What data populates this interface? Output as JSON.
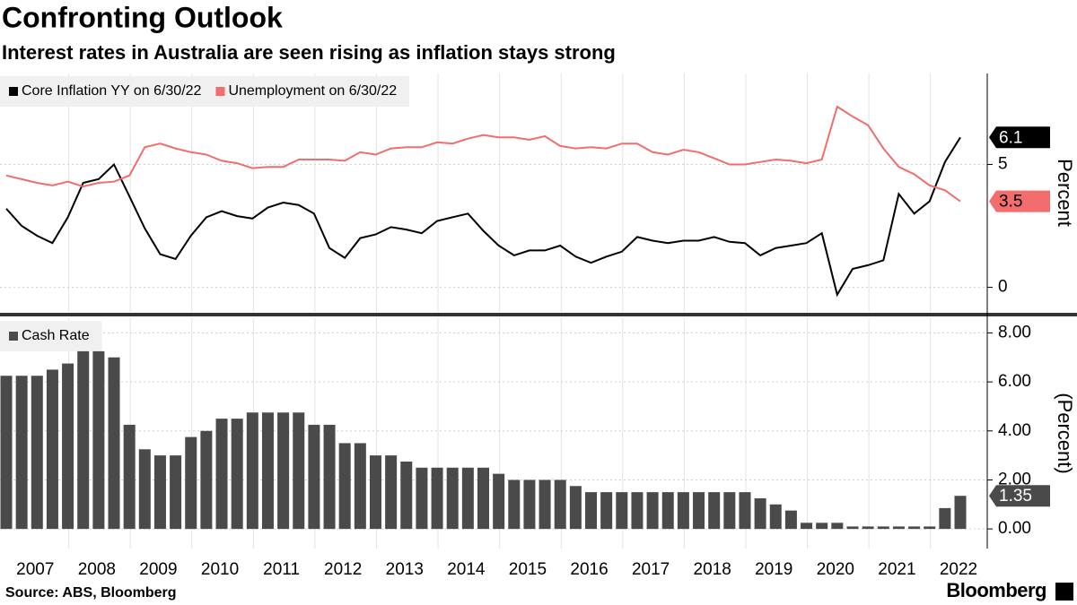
{
  "title": "Confronting Outlook",
  "subtitle": "Interest rates in Australia are seen rising as inflation stays strong",
  "source": "Source: ABS, Bloomberg",
  "brand": "Bloomberg",
  "chart_data": [
    {
      "type": "line",
      "ylabel": "Percent",
      "ylim": [
        -1,
        8.7
      ],
      "yticks": [
        0,
        5
      ],
      "legend": "top-left",
      "series": [
        {
          "name": "Core Inflation YY on 6/30/22",
          "color": "#000000",
          "values": [
            3.2,
            2.5,
            2.1,
            1.8,
            2.85,
            4.25,
            4.4,
            5.0,
            3.7,
            2.4,
            1.35,
            1.15,
            2.1,
            2.85,
            3.1,
            2.9,
            2.8,
            3.25,
            3.45,
            3.35,
            3.0,
            1.6,
            1.2,
            2.0,
            2.15,
            2.45,
            2.35,
            2.2,
            2.7,
            2.85,
            3.0,
            2.3,
            1.7,
            1.3,
            1.5,
            1.5,
            1.7,
            1.25,
            1.0,
            1.25,
            1.45,
            2.05,
            1.9,
            1.8,
            1.9,
            1.9,
            2.05,
            1.85,
            1.8,
            1.3,
            1.6,
            1.7,
            1.8,
            2.2,
            -0.3,
            0.75,
            0.9,
            1.1,
            3.8,
            3.0,
            3.5,
            5.1,
            6.1
          ]
        },
        {
          "name": "Unemployment on 6/30/22",
          "color": "#f26d6d",
          "values": [
            4.55,
            4.4,
            4.25,
            4.15,
            4.3,
            4.1,
            4.25,
            4.3,
            4.55,
            5.7,
            5.85,
            5.65,
            5.5,
            5.4,
            5.15,
            5.05,
            4.85,
            4.9,
            4.9,
            5.2,
            5.2,
            5.2,
            5.15,
            5.5,
            5.4,
            5.65,
            5.7,
            5.7,
            5.9,
            5.85,
            6.05,
            6.2,
            6.1,
            6.1,
            6.0,
            6.15,
            5.75,
            5.65,
            5.7,
            5.65,
            5.85,
            5.85,
            5.5,
            5.4,
            5.6,
            5.5,
            5.25,
            5.0,
            5.0,
            5.1,
            5.2,
            5.15,
            5.05,
            5.2,
            7.35,
            6.95,
            6.6,
            5.65,
            4.9,
            4.6,
            4.15,
            3.95,
            3.5
          ]
        }
      ]
    },
    {
      "type": "bar",
      "ylabel": "(Percent)",
      "ylim": [
        -0.8,
        8.6
      ],
      "yticks": [
        {
          "value": 0,
          "label": "0.00"
        },
        {
          "value": 2,
          "label": "2.00"
        },
        {
          "value": 4,
          "label": "4.00"
        },
        {
          "value": 6,
          "label": "6.00"
        },
        {
          "value": 8,
          "label": "8.00"
        }
      ],
      "legend": "top-left",
      "categories": [
        null,
        null,
        "2007",
        null,
        null,
        null,
        "2008",
        null,
        null,
        null,
        "2009",
        null,
        null,
        null,
        "2010",
        null,
        null,
        null,
        "2011",
        null,
        null,
        null,
        "2012",
        null,
        null,
        null,
        "2013",
        null,
        null,
        null,
        "2014",
        null,
        null,
        null,
        "2015",
        null,
        null,
        null,
        "2016",
        null,
        null,
        null,
        "2017",
        null,
        null,
        null,
        "2018",
        null,
        null,
        null,
        "2019",
        null,
        null,
        null,
        "2020",
        null,
        null,
        null,
        "2021",
        null,
        null,
        null,
        "2022"
      ],
      "series": [
        {
          "name": "Cash Rate",
          "color": "#4a4a4a",
          "values": [
            6.25,
            6.25,
            6.25,
            6.5,
            6.75,
            7.25,
            7.25,
            7.0,
            4.25,
            3.25,
            3.0,
            3.0,
            3.75,
            4.0,
            4.5,
            4.5,
            4.75,
            4.75,
            4.75,
            4.75,
            4.25,
            4.25,
            3.5,
            3.5,
            3.0,
            3.0,
            2.75,
            2.5,
            2.5,
            2.5,
            2.5,
            2.5,
            2.25,
            2.0,
            2.0,
            2.0,
            2.0,
            1.75,
            1.5,
            1.5,
            1.5,
            1.5,
            1.5,
            1.5,
            1.5,
            1.5,
            1.5,
            1.5,
            1.5,
            1.25,
            1.0,
            0.75,
            0.25,
            0.25,
            0.25,
            0.1,
            0.1,
            0.1,
            0.1,
            0.1,
            0.1,
            0.85,
            1.35
          ]
        }
      ]
    }
  ]
}
